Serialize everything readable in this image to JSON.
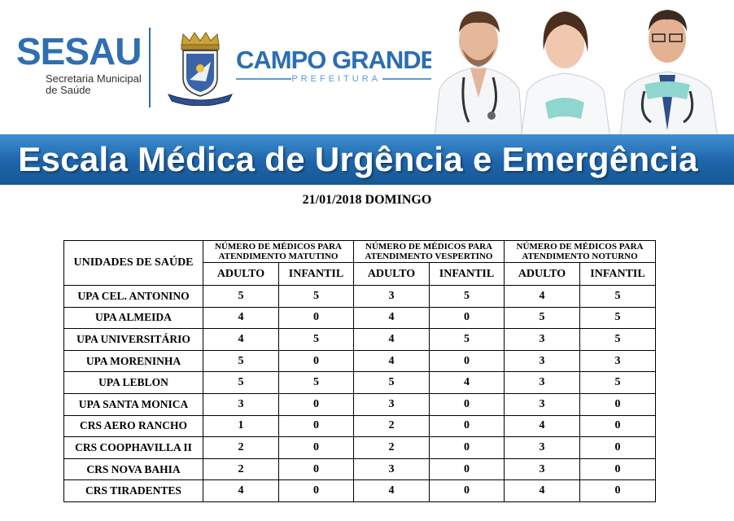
{
  "header": {
    "sesau_logo": "SESAU",
    "sesau_subtitle": "Secretaria Municipal\nde Saúde",
    "crest_ribbon": "CIDADE MORENA",
    "city_name": "CAMPO GRANDE",
    "city_subtitle": "PREFEITURA",
    "banner_title": "Escala Médica de Urgência e Emergência"
  },
  "date_line": "21/01/2018 DOMINGO",
  "table": {
    "units_header": "UNIDADES DE SAÚDE",
    "periods": [
      "NÚMERO DE MÉDICOS PARA ATENDIMENTO MATUTINO",
      "NÚMERO DE MÉDICOS PARA ATENDIMENTO VESPERTINO",
      "NÚMERO DE MÉDICOS PARA ATENDIMENTO NOTURNO"
    ],
    "sub_headers": [
      "ADULTO",
      "INFANTIL",
      "ADULTO",
      "INFANTIL",
      "ADULTO",
      "INFANTIL"
    ],
    "rows": [
      {
        "name": "UPA CEL. ANTONINO",
        "values": [
          "5",
          "5",
          "3",
          "5",
          "4",
          "5"
        ]
      },
      {
        "name": "UPA ALMEIDA",
        "values": [
          "4",
          "0",
          "4",
          "0",
          "5",
          "5"
        ]
      },
      {
        "name": "UPA UNIVERSITÁRIO",
        "values": [
          "4",
          "5",
          "4",
          "5",
          "3",
          "5"
        ]
      },
      {
        "name": "UPA MORENINHA",
        "values": [
          "5",
          "0",
          "4",
          "0",
          "3",
          "3"
        ]
      },
      {
        "name": "UPA LEBLON",
        "values": [
          "5",
          "5",
          "5",
          "4",
          "3",
          "5"
        ]
      },
      {
        "name": "UPA SANTA MONICA",
        "values": [
          "3",
          "0",
          "3",
          "0",
          "3",
          "0"
        ]
      },
      {
        "name": "CRS AERO RANCHO",
        "values": [
          "1",
          "0",
          "2",
          "0",
          "4",
          "0"
        ]
      },
      {
        "name": "CRS COOPHAVILLA II",
        "values": [
          "2",
          "0",
          "2",
          "0",
          "3",
          "0"
        ]
      },
      {
        "name": "CRS NOVA BAHIA",
        "values": [
          "2",
          "0",
          "3",
          "0",
          "3",
          "0"
        ]
      },
      {
        "name": "CRS TIRADENTES",
        "values": [
          "4",
          "0",
          "4",
          "0",
          "4",
          "0"
        ]
      }
    ]
  },
  "colors": {
    "brand_blue": "#2f6fb0",
    "banner_blue": "#1e64aa",
    "accent_light_blue": "#5a9bd8"
  }
}
